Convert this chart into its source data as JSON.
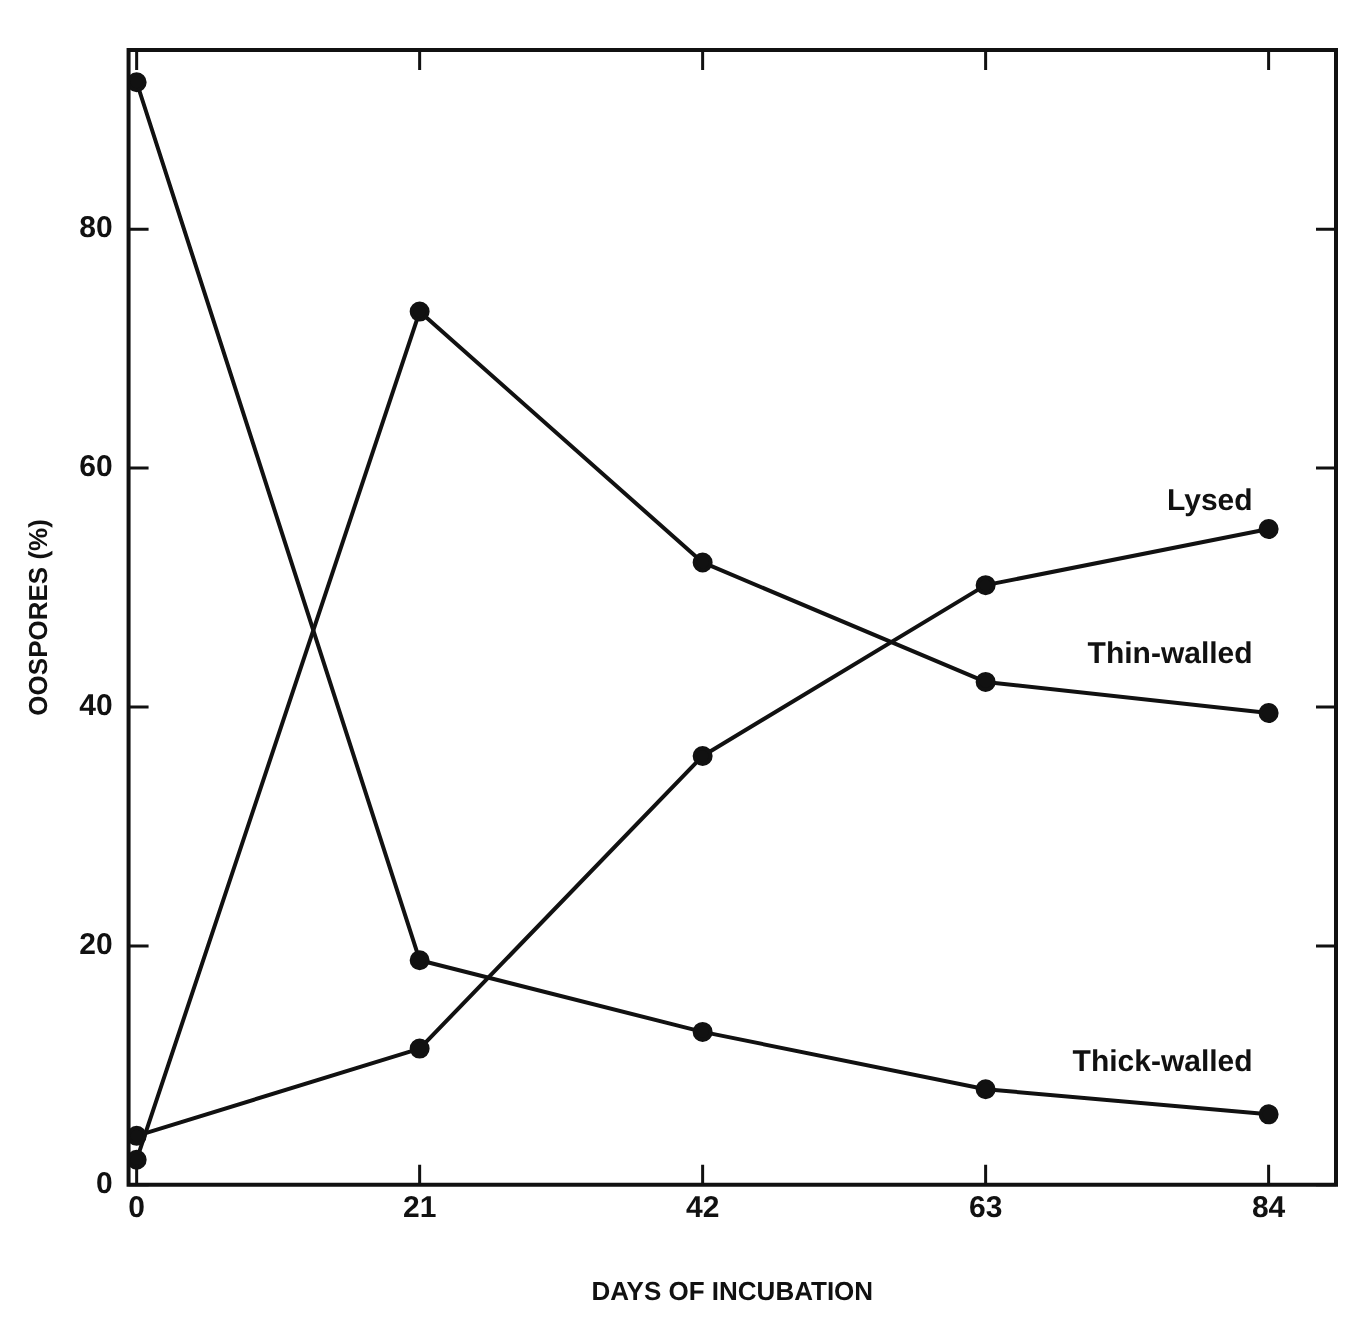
{
  "chart_data": {
    "type": "line",
    "xlabel": "DAYS OF INCUBATION",
    "ylabel": "OOSPORES (%)",
    "x": [
      0,
      21,
      42,
      63,
      84
    ],
    "series": [
      {
        "name": "Lysed",
        "color": "#111111",
        "values": [
          4.1,
          11.4,
          35.9,
          50.2,
          54.9
        ]
      },
      {
        "name": "Thin-walled",
        "color": "#111111",
        "values": [
          2.1,
          73.1,
          52.1,
          42.1,
          39.5
        ]
      },
      {
        "name": "Thick-walled",
        "color": "#111111",
        "values": [
          92.3,
          18.8,
          12.8,
          8.0,
          5.9
        ]
      }
    ],
    "xlim": [
      -0.6,
      89
    ],
    "ylim": [
      0,
      95
    ],
    "xticks": [
      0,
      21,
      42,
      63,
      84
    ],
    "yticks": [
      0,
      20,
      40,
      60,
      80
    ],
    "grid": false,
    "legend": false,
    "marker": "circle",
    "line_style": "solid"
  }
}
